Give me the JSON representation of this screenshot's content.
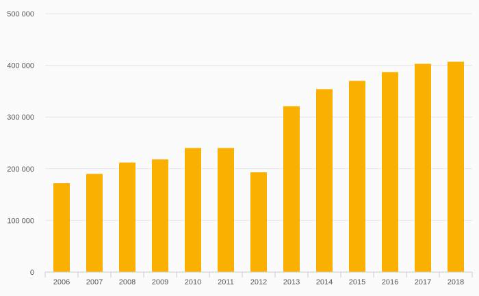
{
  "chart_data": {
    "type": "bar",
    "title": "",
    "xlabel": "",
    "ylabel": "",
    "categories": [
      "2006",
      "2007",
      "2008",
      "2009",
      "2010",
      "2011",
      "2012",
      "2013",
      "2014",
      "2015",
      "2016",
      "2017",
      "2018"
    ],
    "values": [
      172000,
      190000,
      212000,
      218000,
      240000,
      240000,
      193000,
      321000,
      354000,
      370000,
      387000,
      403000,
      407000
    ],
    "ylim": [
      0,
      500000
    ],
    "yticks": [
      0,
      100000,
      200000,
      300000,
      400000,
      500000
    ],
    "ytick_labels": [
      "0",
      "100 000",
      "200 000",
      "300 000",
      "400 000",
      "500 000"
    ],
    "grid": true,
    "legend": "none",
    "bar_color": "#f9b000",
    "grid_color": "#e6e6e6",
    "axis_color": "#cccccc",
    "text_color": "#555555"
  }
}
